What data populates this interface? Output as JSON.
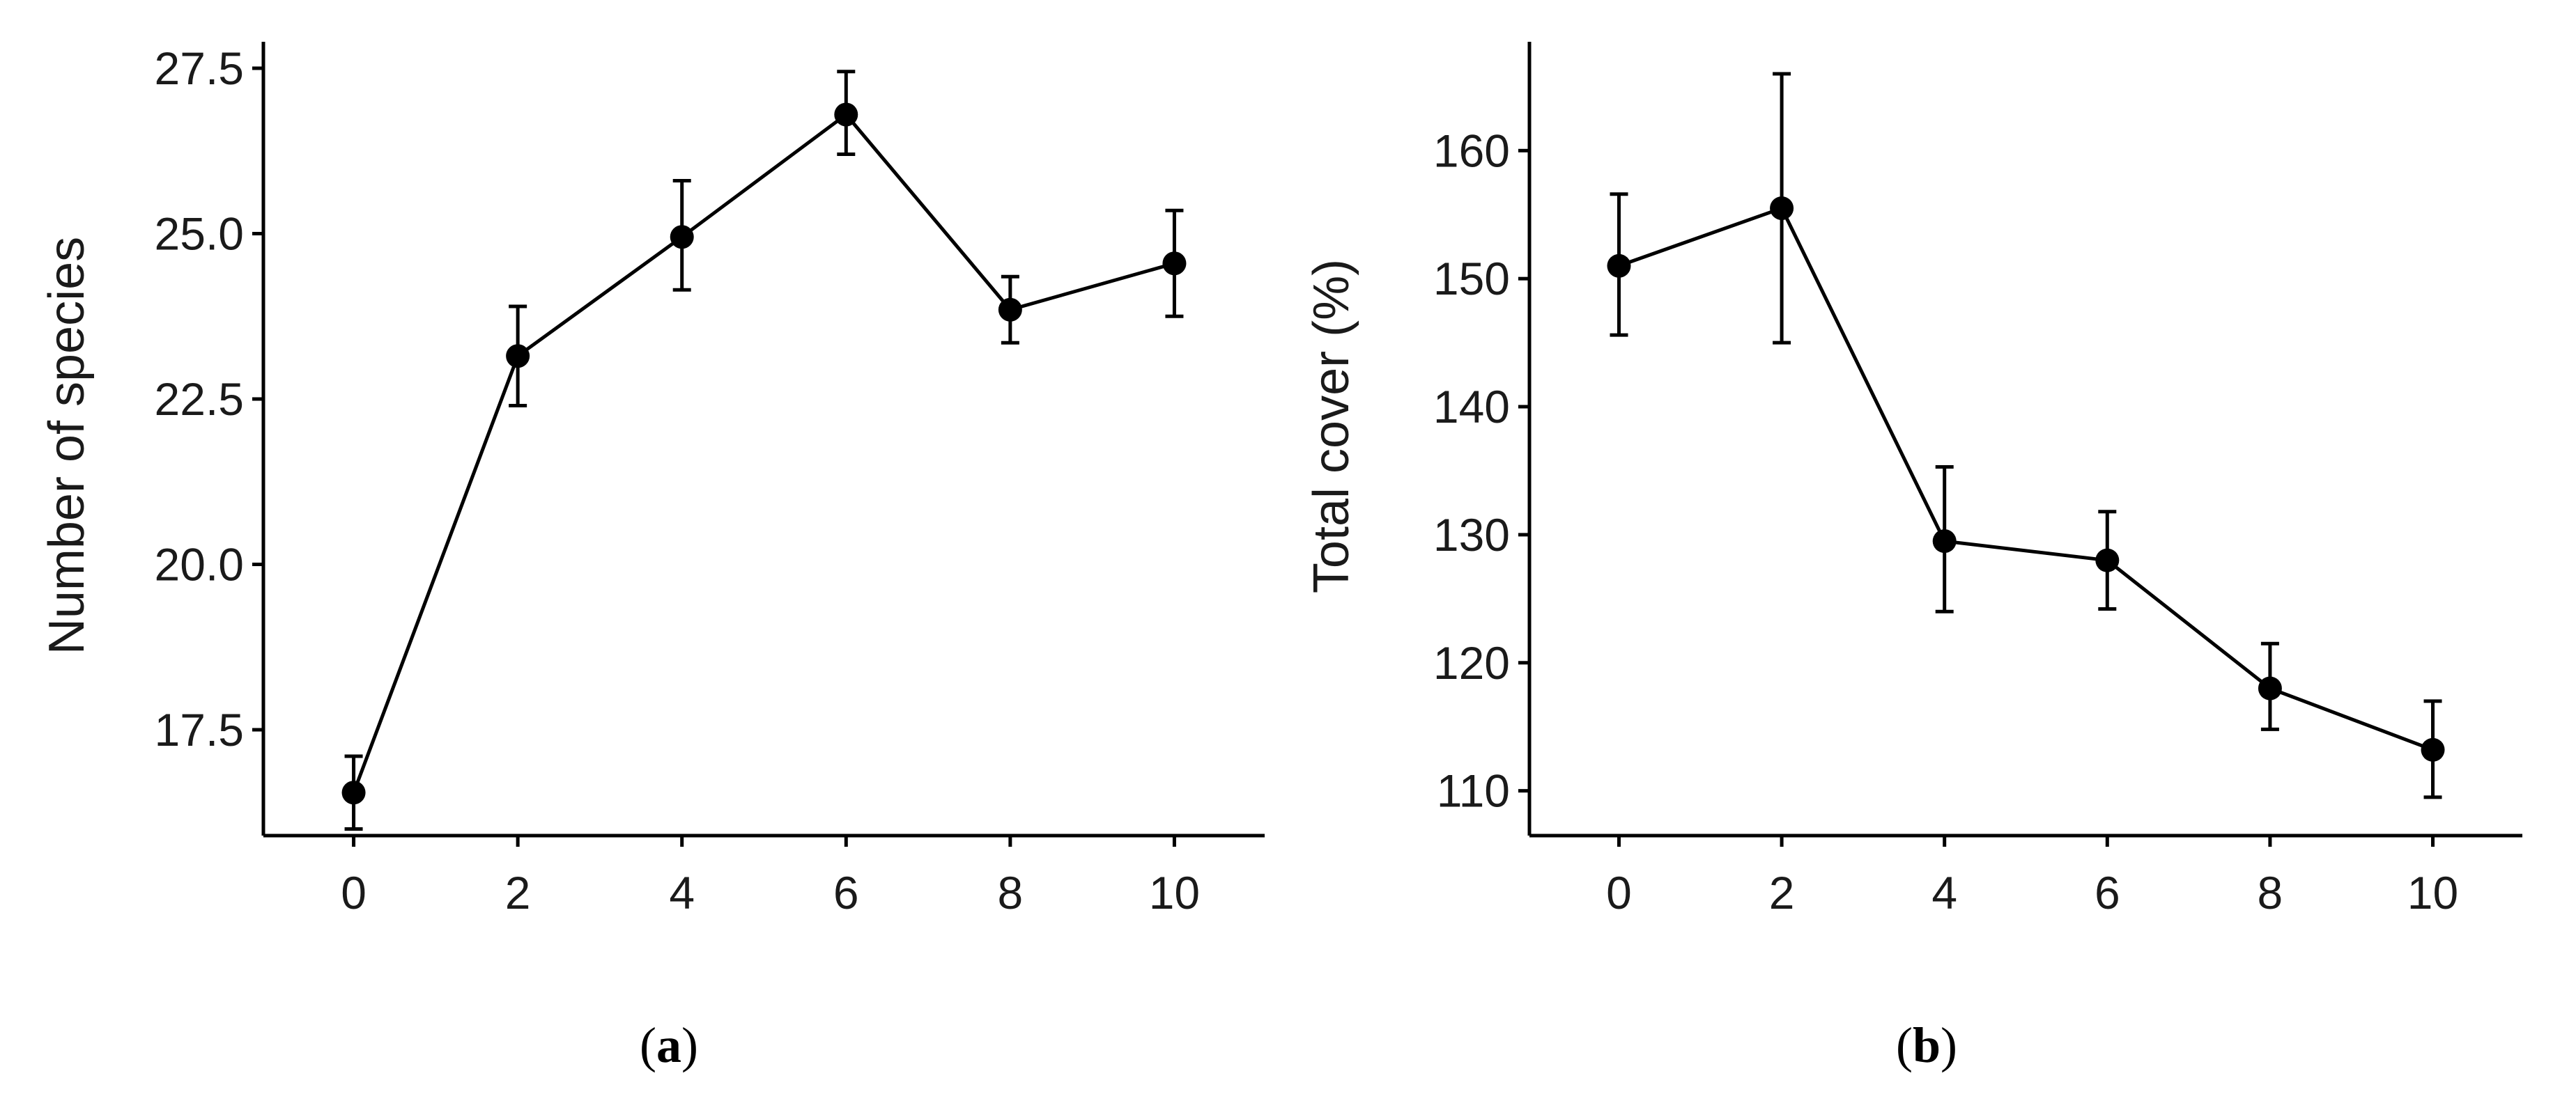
{
  "colors": {
    "line": "#000000",
    "point": "#000000",
    "axis": "#000000",
    "text": "#1a1a1a",
    "background": "#ffffff"
  },
  "chart_data": [
    {
      "type": "line",
      "panel": "a",
      "panel_label": {
        "open": "(",
        "letter": "a",
        "close": ")"
      },
      "xlabel": "",
      "ylabel": "Number of species",
      "xlim": [
        -1.1,
        11.1
      ],
      "ylim": [
        15.9,
        27.9
      ],
      "x_ticks": [
        0,
        2,
        4,
        6,
        8,
        10
      ],
      "x_tick_labels": [
        "0",
        "2",
        "4",
        "6",
        "8",
        "10"
      ],
      "y_ticks": [
        17.5,
        20.0,
        22.5,
        25.0,
        27.5
      ],
      "y_tick_labels": [
        "17.5",
        "20.0",
        "22.5",
        "25.0",
        "27.5"
      ],
      "grid": false,
      "legend": "none",
      "series": [
        {
          "x": [
            0,
            2,
            4,
            6,
            8,
            10
          ],
          "y": [
            16.55,
            23.15,
            24.95,
            26.8,
            23.85,
            24.55
          ],
          "err_low": [
            16.0,
            22.4,
            24.15,
            26.2,
            23.35,
            23.75
          ],
          "err_high": [
            17.1,
            23.9,
            25.8,
            27.45,
            24.35,
            25.35
          ]
        }
      ]
    },
    {
      "type": "line",
      "panel": "b",
      "panel_label": {
        "open": "(",
        "letter": "b",
        "close": ")"
      },
      "xlabel": "",
      "ylabel": "Total cover (%)",
      "xlim": [
        -1.1,
        11.1
      ],
      "ylim": [
        106.5,
        168.5
      ],
      "x_ticks": [
        0,
        2,
        4,
        6,
        8,
        10
      ],
      "x_tick_labels": [
        "0",
        "2",
        "4",
        "6",
        "8",
        "10"
      ],
      "y_ticks": [
        110,
        120,
        130,
        140,
        150,
        160
      ],
      "y_tick_labels": [
        "110",
        "120",
        "130",
        "140",
        "150",
        "160"
      ],
      "grid": false,
      "legend": "none",
      "series": [
        {
          "x": [
            0,
            2,
            4,
            6,
            8,
            10
          ],
          "y": [
            151.0,
            155.5,
            129.5,
            128.0,
            118.0,
            113.2
          ],
          "err_low": [
            145.6,
            145.0,
            124.0,
            124.2,
            114.8,
            109.5
          ],
          "err_high": [
            156.6,
            166.0,
            135.3,
            131.8,
            121.5,
            117.0
          ]
        }
      ]
    }
  ]
}
